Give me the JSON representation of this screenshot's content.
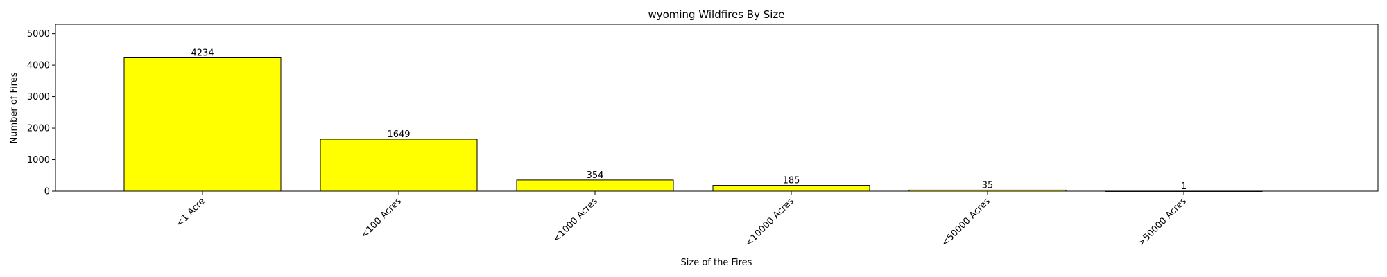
{
  "chart_data": {
    "type": "bar",
    "title": "wyoming Wildfires By Size",
    "xlabel": "Size of the Fires",
    "ylabel": "Number of Fires",
    "categories": [
      "<1 Acre",
      "<100 Acres",
      "<1000 Acres",
      "<10000 Acres",
      "<50000 Acres",
      ">50000 Acres"
    ],
    "values": [
      4234,
      1649,
      354,
      185,
      35,
      1
    ],
    "data_labels": [
      "4234",
      "1649",
      "354",
      "185",
      "35",
      "1"
    ],
    "yticks": [
      0,
      1000,
      2000,
      3000,
      4000,
      5000
    ],
    "ytick_labels": [
      "0",
      "1000",
      "2000",
      "3000",
      "4000",
      "5000"
    ],
    "ylim": [
      0,
      5300
    ],
    "bar_color": "#ffff00",
    "edge_color": "#000000",
    "grid": false,
    "legend": "none"
  }
}
